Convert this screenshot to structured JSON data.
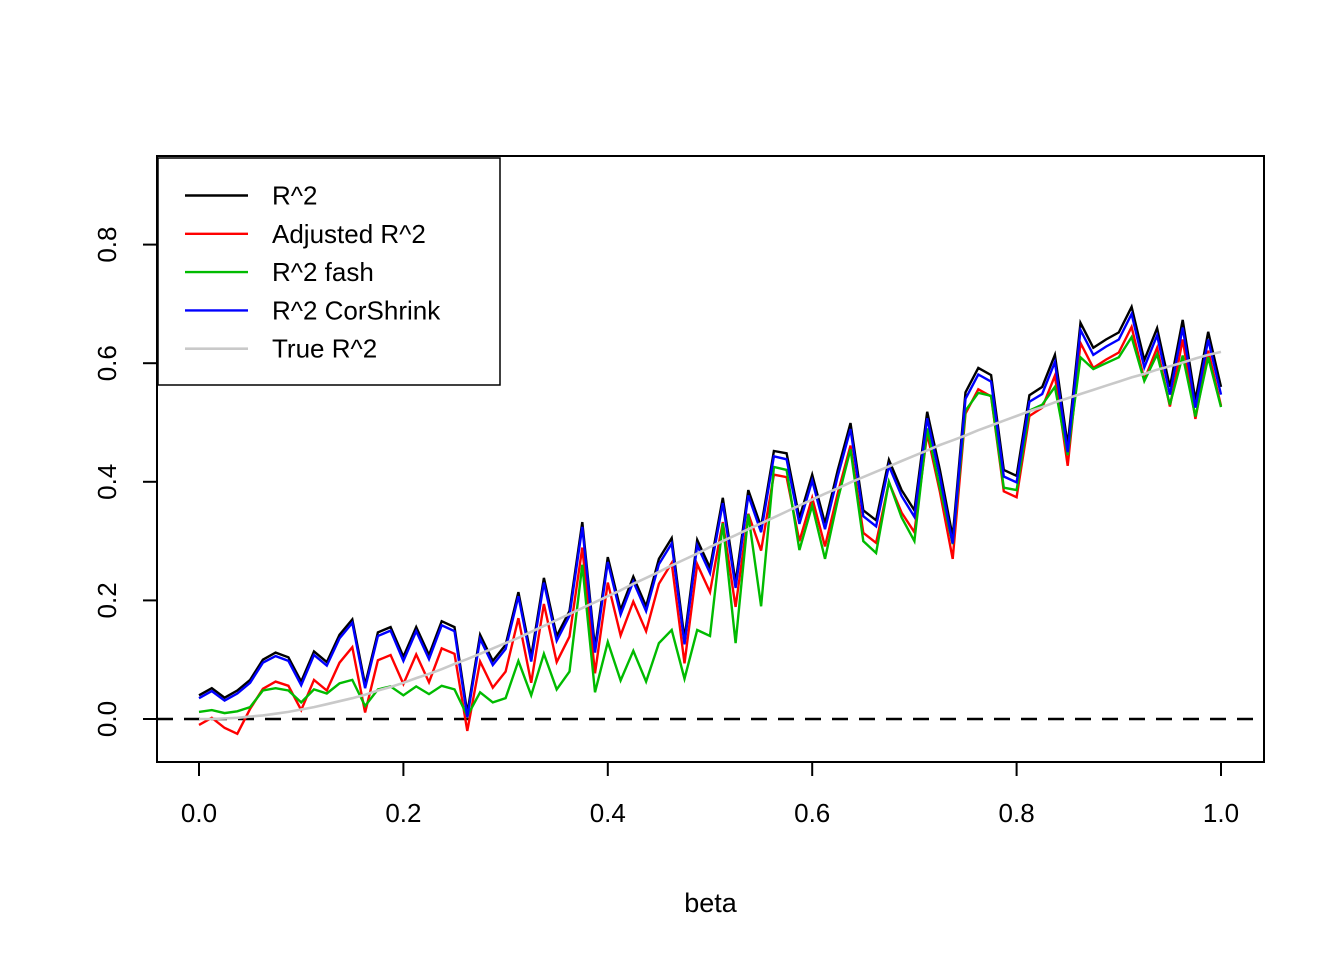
{
  "chart_data": {
    "type": "line",
    "title": "",
    "xlabel": "beta",
    "ylabel": "",
    "grid": false,
    "xlim": [
      -0.04,
      1.04
    ],
    "ylim": [
      -0.07,
      0.95
    ],
    "x_ticks": {
      "values": [
        0,
        0.2,
        0.4,
        0.6,
        0.8,
        1.0
      ],
      "labels": [
        "0.0",
        "0.2",
        "0.4",
        "0.6",
        "0.8",
        "1.0"
      ]
    },
    "y_ticks": {
      "values": [
        0,
        0.2,
        0.4,
        0.6,
        0.8
      ],
      "labels": [
        "0.0",
        "0.2",
        "0.4",
        "0.6",
        "0.8"
      ]
    },
    "reference_line": {
      "y": 0,
      "style": "dashed",
      "color": "#000000"
    },
    "legend": {
      "position": "top-left"
    },
    "x": [
      0,
      0.0125,
      0.025,
      0.0375,
      0.05,
      0.0625,
      0.075,
      0.0875,
      0.1,
      0.1125,
      0.125,
      0.1375,
      0.15,
      0.1625,
      0.175,
      0.1875,
      0.2,
      0.2125,
      0.225,
      0.2375,
      0.25,
      0.2625,
      0.275,
      0.2875,
      0.3,
      0.3125,
      0.325,
      0.3375,
      0.35,
      0.3625,
      0.375,
      0.3875,
      0.4,
      0.4125,
      0.425,
      0.4375,
      0.45,
      0.4625,
      0.475,
      0.4875,
      0.5,
      0.5125,
      0.525,
      0.5375,
      0.55,
      0.5625,
      0.575,
      0.5875,
      0.6,
      0.6125,
      0.625,
      0.6375,
      0.65,
      0.6625,
      0.675,
      0.6875,
      0.7,
      0.7125,
      0.725,
      0.7375,
      0.75,
      0.7625,
      0.775,
      0.7875,
      0.8,
      0.8125,
      0.825,
      0.8375,
      0.85,
      0.8625,
      0.875,
      0.8875,
      0.9,
      0.9125,
      0.925,
      0.9375,
      0.95,
      0.9625,
      0.975,
      0.9875,
      1.0
    ],
    "series": [
      {
        "name": "R^2",
        "color": "#000000",
        "line_width": 2.4,
        "values": [
          0.04,
          0.052,
          0.036,
          0.048,
          0.066,
          0.1,
          0.112,
          0.104,
          0.063,
          0.114,
          0.096,
          0.142,
          0.168,
          0.058,
          0.146,
          0.155,
          0.105,
          0.155,
          0.108,
          0.165,
          0.155,
          0.01,
          0.142,
          0.098,
          0.125,
          0.214,
          0.105,
          0.238,
          0.14,
          0.182,
          0.332,
          0.12,
          0.273,
          0.184,
          0.24,
          0.19,
          0.27,
          0.305,
          0.135,
          0.302,
          0.255,
          0.373,
          0.23,
          0.386,
          0.324,
          0.452,
          0.448,
          0.339,
          0.412,
          0.33,
          0.42,
          0.499,
          0.352,
          0.335,
          0.437,
          0.386,
          0.352,
          0.518,
          0.42,
          0.307,
          0.551,
          0.592,
          0.58,
          0.42,
          0.41,
          0.546,
          0.56,
          0.614,
          0.462,
          0.668,
          0.626,
          0.64,
          0.652,
          0.695,
          0.605,
          0.659,
          0.56,
          0.673,
          0.538,
          0.653,
          0.56
        ]
      },
      {
        "name": "Adjusted R^2",
        "color": "#FF0000",
        "line_width": 2.4,
        "values": [
          -0.01,
          0.002,
          -0.015,
          -0.025,
          0.017,
          0.051,
          0.063,
          0.056,
          0.015,
          0.066,
          0.048,
          0.095,
          0.121,
          0.011,
          0.099,
          0.108,
          0.059,
          0.109,
          0.062,
          0.119,
          0.11,
          -0.02,
          0.097,
          0.053,
          0.08,
          0.17,
          0.061,
          0.194,
          0.096,
          0.139,
          0.289,
          0.077,
          0.23,
          0.141,
          0.198,
          0.148,
          0.228,
          0.263,
          0.094,
          0.261,
          0.214,
          0.332,
          0.189,
          0.346,
          0.284,
          0.412,
          0.408,
          0.3,
          0.373,
          0.291,
          0.381,
          0.461,
          0.314,
          0.297,
          0.399,
          0.348,
          0.315,
          0.481,
          0.383,
          0.27,
          0.515,
          0.556,
          0.544,
          0.384,
          0.374,
          0.511,
          0.525,
          0.579,
          0.427,
          0.634,
          0.592,
          0.606,
          0.618,
          0.661,
          0.572,
          0.626,
          0.527,
          0.64,
          0.506,
          0.621,
          0.528
        ]
      },
      {
        "name": "R^2 fash",
        "color": "#00BB00",
        "line_width": 2.4,
        "values": [
          0.012,
          0.015,
          0.01,
          0.013,
          0.02,
          0.048,
          0.052,
          0.048,
          0.028,
          0.05,
          0.043,
          0.06,
          0.066,
          0.022,
          0.05,
          0.055,
          0.04,
          0.055,
          0.042,
          0.056,
          0.05,
          0.005,
          0.045,
          0.028,
          0.035,
          0.098,
          0.04,
          0.11,
          0.05,
          0.08,
          0.26,
          0.045,
          0.13,
          0.065,
          0.115,
          0.063,
          0.128,
          0.15,
          0.068,
          0.15,
          0.14,
          0.33,
          0.128,
          0.345,
          0.19,
          0.425,
          0.42,
          0.285,
          0.36,
          0.27,
          0.37,
          0.455,
          0.3,
          0.28,
          0.4,
          0.34,
          0.3,
          0.49,
          0.39,
          0.295,
          0.52,
          0.55,
          0.545,
          0.39,
          0.386,
          0.52,
          0.53,
          0.56,
          0.445,
          0.61,
          0.59,
          0.6,
          0.61,
          0.644,
          0.57,
          0.615,
          0.53,
          0.613,
          0.51,
          0.61,
          0.526
        ]
      },
      {
        "name": "R^2 CorShrink",
        "color": "#0000FF",
        "line_width": 2.4,
        "values": [
          0.035,
          0.047,
          0.031,
          0.043,
          0.061,
          0.095,
          0.106,
          0.098,
          0.057,
          0.108,
          0.09,
          0.136,
          0.162,
          0.052,
          0.14,
          0.149,
          0.098,
          0.148,
          0.101,
          0.158,
          0.148,
          0.003,
          0.135,
          0.091,
          0.118,
          0.207,
          0.097,
          0.23,
          0.132,
          0.174,
          0.324,
          0.112,
          0.265,
          0.176,
          0.232,
          0.182,
          0.261,
          0.296,
          0.126,
          0.293,
          0.246,
          0.364,
          0.221,
          0.377,
          0.315,
          0.443,
          0.438,
          0.329,
          0.402,
          0.32,
          0.41,
          0.489,
          0.342,
          0.325,
          0.427,
          0.376,
          0.341,
          0.507,
          0.409,
          0.296,
          0.54,
          0.581,
          0.569,
          0.409,
          0.399,
          0.535,
          0.548,
          0.602,
          0.45,
          0.656,
          0.614,
          0.628,
          0.64,
          0.683,
          0.593,
          0.647,
          0.547,
          0.66,
          0.525,
          0.64,
          0.547
        ]
      },
      {
        "name": "True R^2",
        "color": "#C9C9C9",
        "line_width": 2.6,
        "values": [
          0.0,
          0.0,
          0.001,
          0.002,
          0.004,
          0.006,
          0.009,
          0.012,
          0.016,
          0.02,
          0.025,
          0.03,
          0.035,
          0.041,
          0.048,
          0.054,
          0.061,
          0.069,
          0.076,
          0.084,
          0.093,
          0.101,
          0.11,
          0.119,
          0.128,
          0.137,
          0.147,
          0.157,
          0.167,
          0.177,
          0.187,
          0.197,
          0.207,
          0.217,
          0.228,
          0.238,
          0.248,
          0.259,
          0.269,
          0.279,
          0.29,
          0.3,
          0.31,
          0.32,
          0.33,
          0.34,
          0.35,
          0.36,
          0.37,
          0.38,
          0.389,
          0.399,
          0.408,
          0.417,
          0.426,
          0.435,
          0.444,
          0.453,
          0.462,
          0.47,
          0.478,
          0.487,
          0.495,
          0.503,
          0.511,
          0.519,
          0.526,
          0.534,
          0.541,
          0.548,
          0.555,
          0.562,
          0.569,
          0.576,
          0.582,
          0.589,
          0.595,
          0.601,
          0.608,
          0.614,
          0.619
        ]
      }
    ]
  }
}
